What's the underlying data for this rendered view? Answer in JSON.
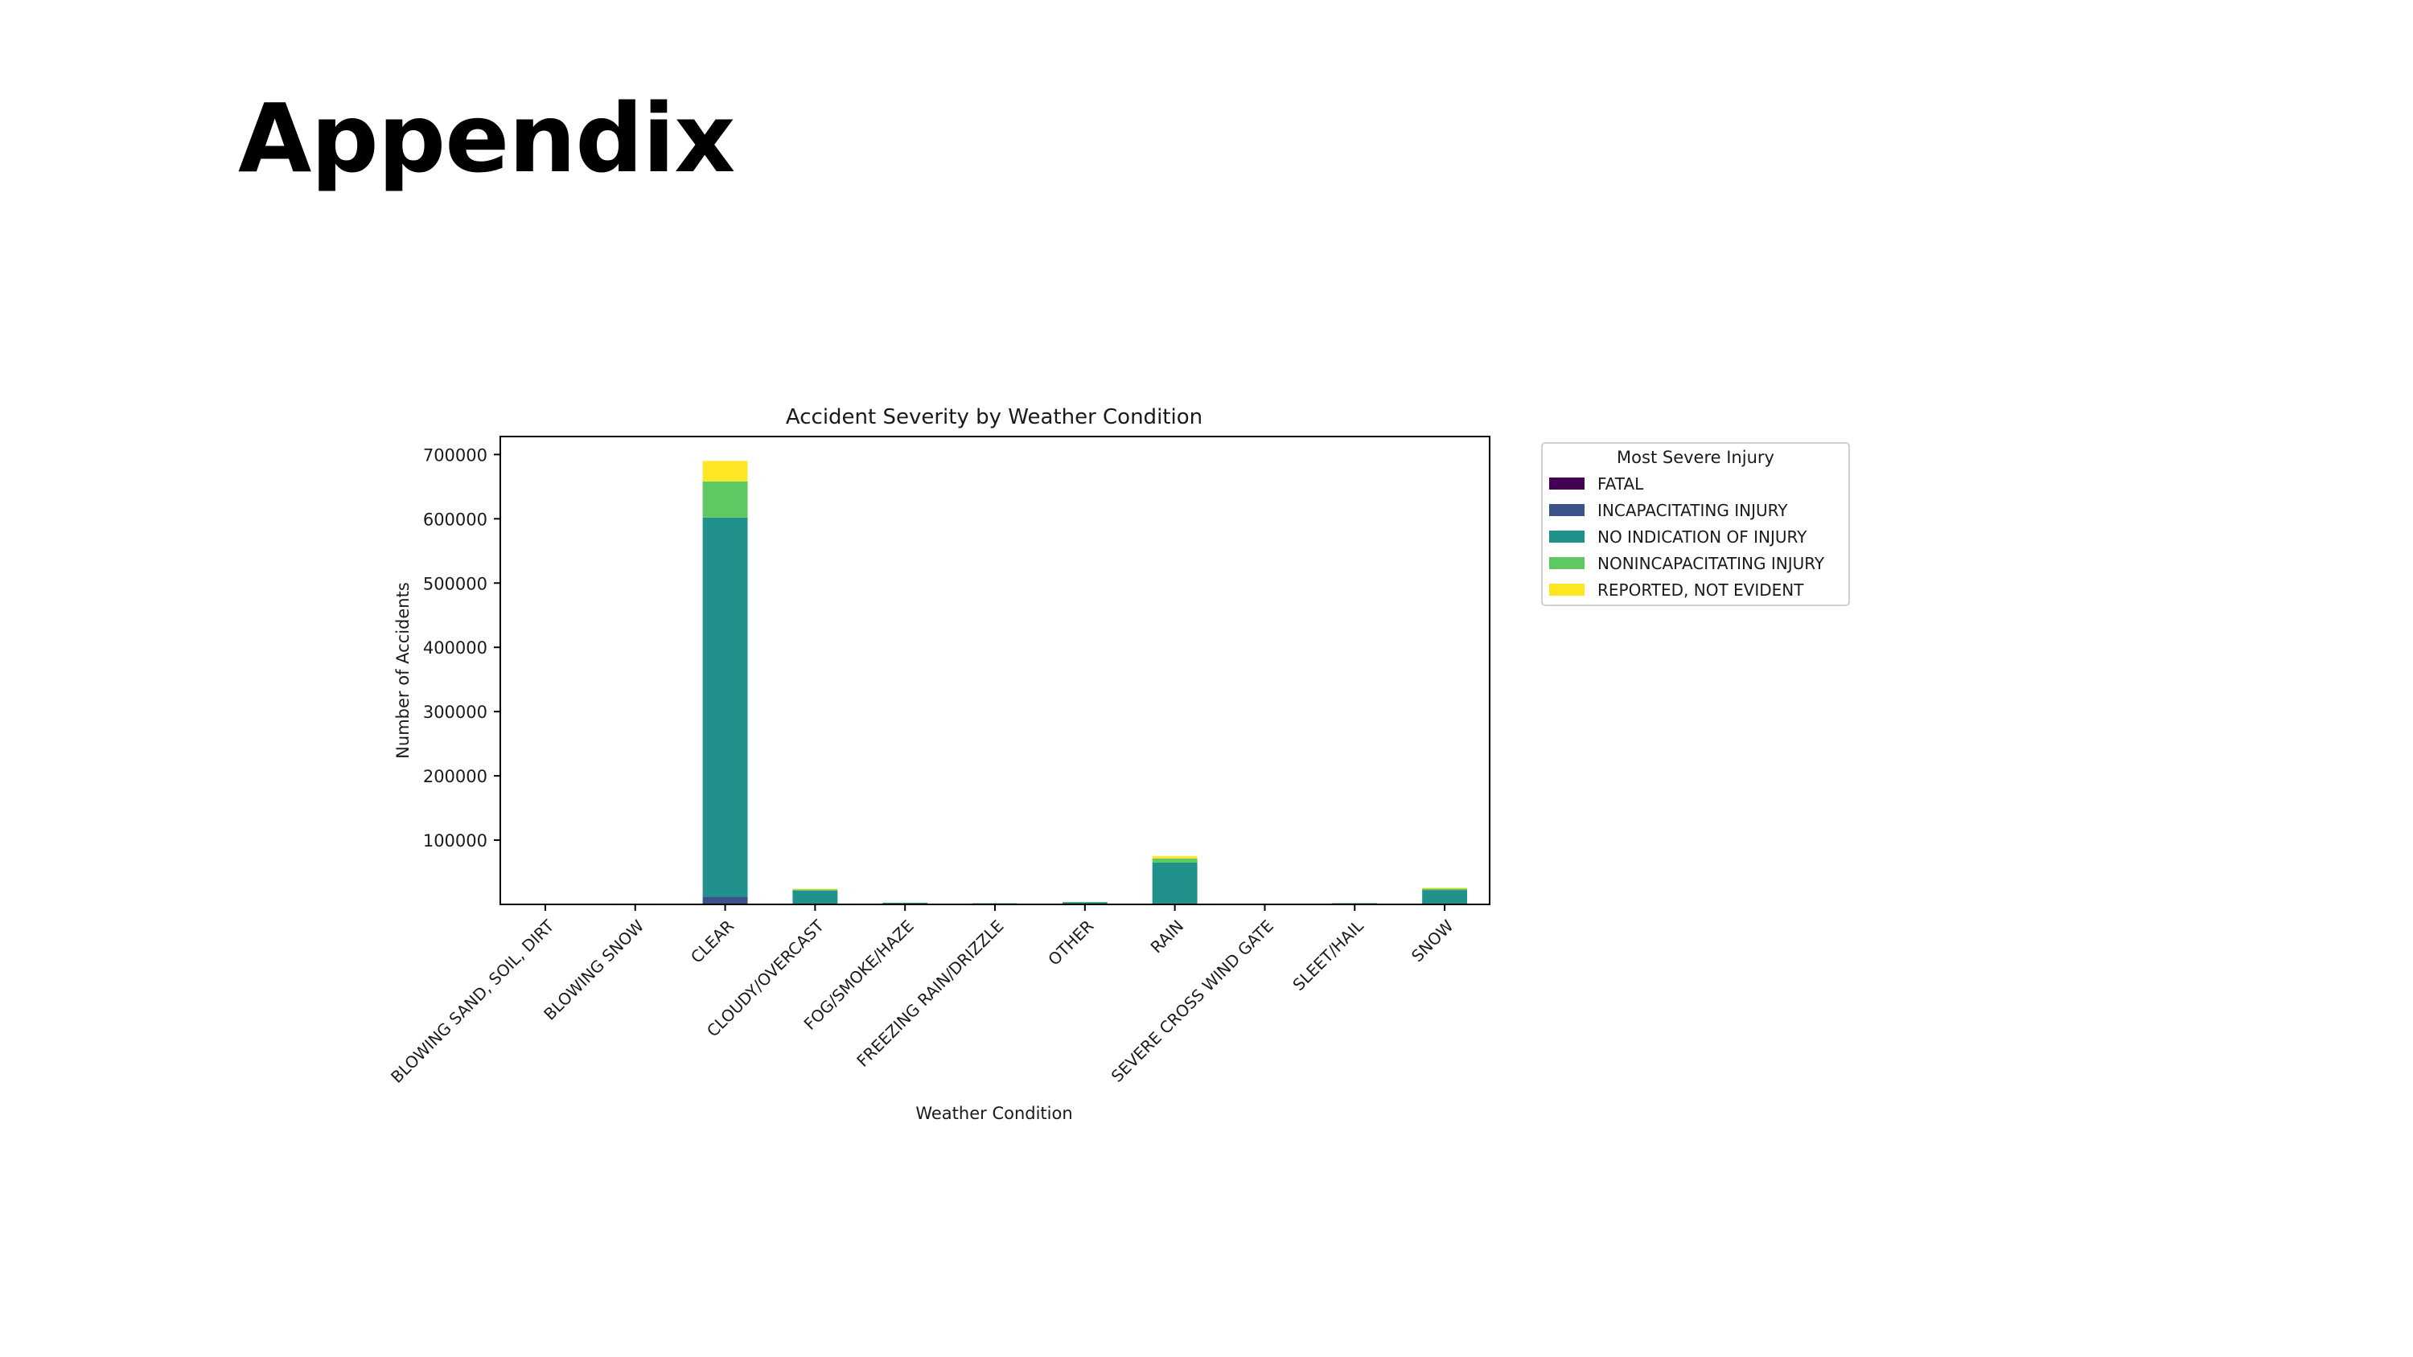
{
  "slide": {
    "title": "Appendix"
  },
  "chart_data": {
    "type": "bar",
    "stacked": true,
    "title": "Accident Severity by Weather Condition",
    "xlabel": "Weather Condition",
    "ylabel": "Number of Accidents",
    "ylim": [
      0,
      728000
    ],
    "yticks": [
      100000,
      200000,
      300000,
      400000,
      500000,
      600000,
      700000
    ],
    "grid": false,
    "legend": {
      "title": "Most Severe Injury",
      "placement": "outside-right-top"
    },
    "categories": [
      "BLOWING SAND, SOIL, DIRT",
      "BLOWING SNOW",
      "CLEAR",
      "CLOUDY/OVERCAST",
      "FOG/SMOKE/HAZE",
      "FREEZING RAIN/DRIZZLE",
      "OTHER",
      "RAIN",
      "SEVERE CROSS WIND GATE",
      "SLEET/HAIL",
      "SNOW"
    ],
    "series": [
      {
        "name": "FATAL",
        "color": "#440154",
        "values": [
          0,
          0,
          1000,
          20,
          5,
          3,
          5,
          80,
          2,
          2,
          20
        ]
      },
      {
        "name": "INCAPACITATING INJURY",
        "color": "#3b528b",
        "values": [
          2,
          20,
          11000,
          350,
          50,
          40,
          80,
          1200,
          15,
          30,
          350
        ]
      },
      {
        "name": "NO INDICATION OF INJURY",
        "color": "#21918c",
        "values": [
          250,
          1100,
          590000,
          21000,
          2400,
          1700,
          3300,
          64000,
          1100,
          1800,
          22000
        ]
      },
      {
        "name": "NONINCAPACITATING INJURY",
        "color": "#5ec962",
        "values": [
          30,
          120,
          56000,
          1900,
          250,
          200,
          300,
          6000,
          90,
          150,
          2000
        ]
      },
      {
        "name": "REPORTED, NOT EVIDENT",
        "color": "#fde725",
        "values": [
          30,
          120,
          32000,
          1100,
          150,
          120,
          200,
          3800,
          70,
          100,
          1400
        ]
      }
    ]
  }
}
